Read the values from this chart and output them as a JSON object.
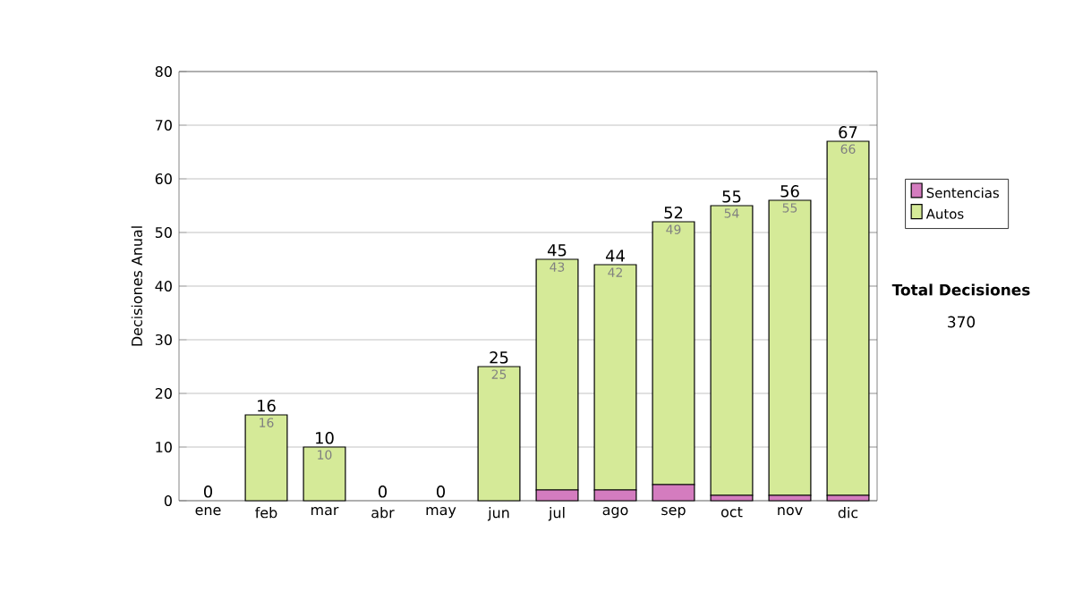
{
  "chart_data": {
    "type": "bar",
    "stacked": true,
    "ylabel": "Decisiones Anual",
    "categories": [
      "ene",
      "feb",
      "mar",
      "abr",
      "may",
      "jun",
      "jul",
      "ago",
      "sep",
      "oct",
      "nov",
      "dic"
    ],
    "series": [
      {
        "name": "Sentencias",
        "color": "#d47cbf",
        "values": [
          0,
          0,
          0,
          0,
          0,
          0,
          2,
          2,
          3,
          1,
          1,
          1
        ]
      },
      {
        "name": "Autos",
        "color": "#d5ea98",
        "values": [
          0,
          16,
          10,
          0,
          0,
          25,
          43,
          42,
          49,
          54,
          55,
          66
        ],
        "value_labels": [
          null,
          "16",
          "10",
          null,
          null,
          "25",
          "43",
          "42",
          "49",
          "54",
          "55",
          "66"
        ]
      }
    ],
    "totals": [
      "0",
      "16",
      "10",
      "0",
      "0",
      "25",
      "45",
      "44",
      "52",
      "55",
      "56",
      "67"
    ],
    "ylim": [
      0,
      80
    ],
    "yticks": [
      0,
      10,
      20,
      30,
      40,
      50,
      60,
      70,
      80
    ],
    "grid": "y",
    "legend": "right",
    "annotations": [
      "Total Decisiones",
      "370"
    ]
  }
}
